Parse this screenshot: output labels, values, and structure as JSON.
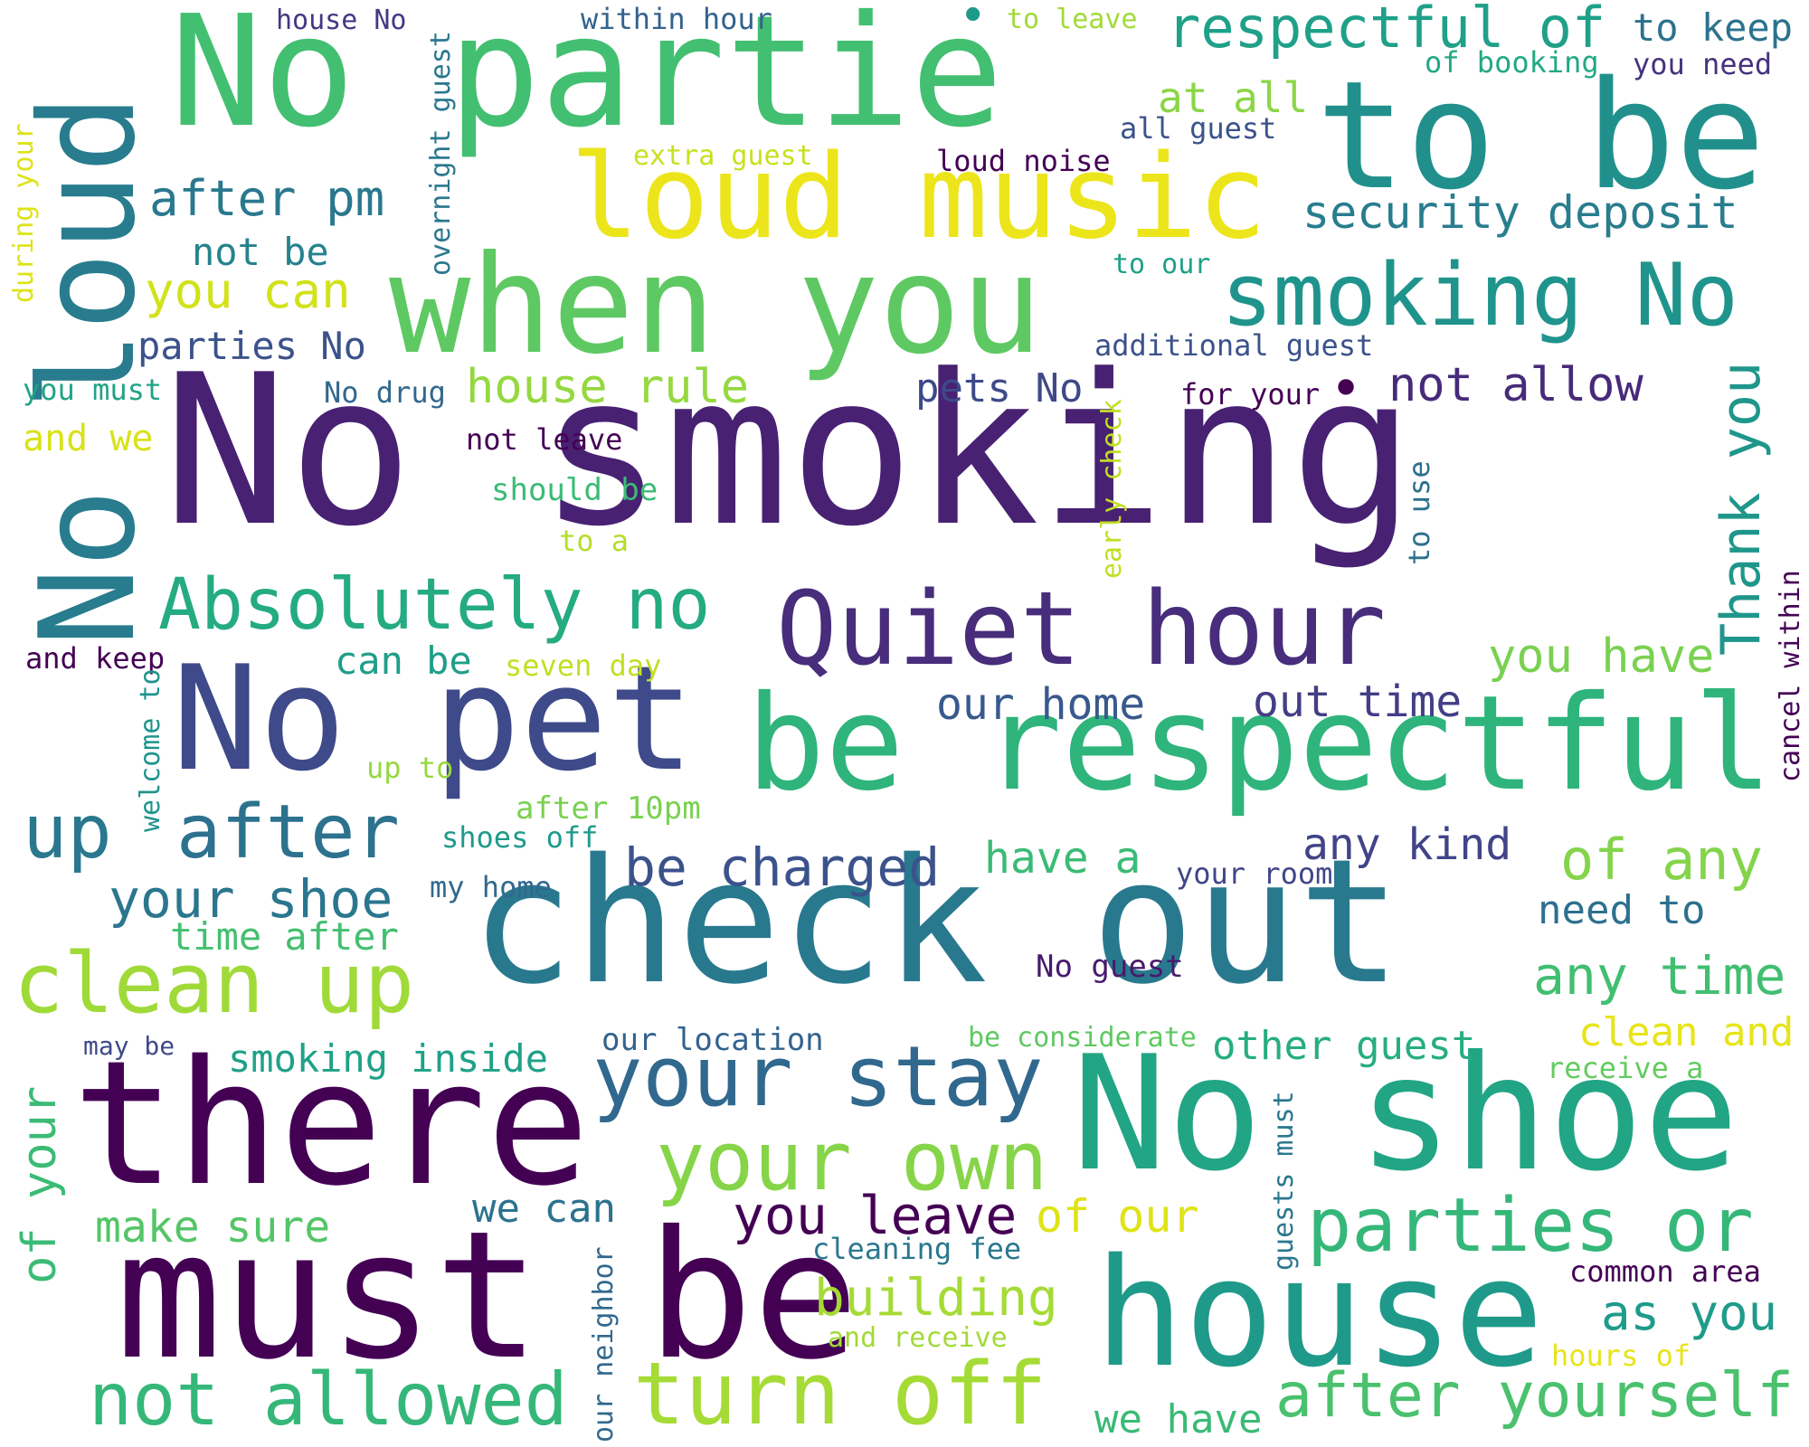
{
  "wordcloud": {
    "background": "#ffffff",
    "palette": "viridis",
    "words": [
      {
        "text": "No smoking",
        "color": "#482173"
      },
      {
        "text": "No partie",
        "color": "#43bf71"
      },
      {
        "text": "to be",
        "color": "#21908d"
      },
      {
        "text": "loud music",
        "color": "#ece51b"
      },
      {
        "text": "when you",
        "color": "#5ec962"
      },
      {
        "text": "check out",
        "color": "#29798e"
      },
      {
        "text": "No shoe",
        "color": "#21a585"
      },
      {
        "text": "there",
        "color": "#440154"
      },
      {
        "text": "must be",
        "color": "#440154"
      },
      {
        "text": "house",
        "color": "#1f9a8a"
      },
      {
        "text": "No pet",
        "color": "#3e4a89"
      },
      {
        "text": "be respectful",
        "color": "#2fb47c"
      },
      {
        "text": "Quiet hour",
        "color": "#472d7b"
      },
      {
        "text": "No loud",
        "color": "#287c8e"
      },
      {
        "text": "smoking No",
        "color": "#1f948c"
      },
      {
        "text": "Absolutely no",
        "color": "#25ab82"
      },
      {
        "text": "clean up",
        "color": "#a0da39"
      },
      {
        "text": "your stay",
        "color": "#31688e"
      },
      {
        "text": "your own",
        "color": "#86d549"
      },
      {
        "text": "turn off",
        "color": "#a5db36"
      },
      {
        "text": "not allowed",
        "color": "#35b779"
      },
      {
        "text": "parties or",
        "color": "#35b779"
      },
      {
        "text": "after yourself",
        "color": "#4ac16d"
      },
      {
        "text": "respectful of",
        "color": "#1fa088"
      },
      {
        "text": "after",
        "color": "#2c728e"
      },
      {
        "text": "up",
        "color": "#2a788e"
      },
      {
        "text": "security deposit",
        "color": "#287d8e"
      },
      {
        "text": "your shoe",
        "color": "#2a768e"
      },
      {
        "text": "be charged",
        "color": "#3b528b"
      },
      {
        "text": "you leave",
        "color": "#440154"
      },
      {
        "text": "of any",
        "color": "#84d44b"
      },
      {
        "text": "any time",
        "color": "#42be71"
      },
      {
        "text": "after pm",
        "color": "#2a788e"
      },
      {
        "text": "you can",
        "color": "#d2e21b"
      },
      {
        "text": "house rule",
        "color": "#95d840"
      },
      {
        "text": "Thank you",
        "color": "#1f968b"
      },
      {
        "text": "not allow",
        "color": "#472a7a"
      },
      {
        "text": "you have",
        "color": "#7ad151"
      },
      {
        "text": "our home",
        "color": "#38598c"
      },
      {
        "text": "out time",
        "color": "#433e85"
      },
      {
        "text": "any kind",
        "color": "#414487"
      },
      {
        "text": "have a",
        "color": "#3bbb75"
      },
      {
        "text": "make sure",
        "color": "#54c568"
      },
      {
        "text": "of your",
        "color": "#3bbb75"
      },
      {
        "text": "building",
        "color": "#a5db36"
      },
      {
        "text": "of our",
        "color": "#dfe318"
      },
      {
        "text": "as you",
        "color": "#1e9b8a"
      },
      {
        "text": "need to",
        "color": "#2d708e"
      },
      {
        "text": "clean and",
        "color": "#e7e419"
      },
      {
        "text": "other guest",
        "color": "#26ad81"
      },
      {
        "text": "we can",
        "color": "#2c728e"
      },
      {
        "text": "we have",
        "color": "#3aba76"
      },
      {
        "text": "smoking inside",
        "color": "#1fa187"
      },
      {
        "text": "parties No",
        "color": "#3b528b"
      },
      {
        "text": "pets No",
        "color": "#3e4989"
      },
      {
        "text": "not be",
        "color": "#26828e"
      },
      {
        "text": "can be",
        "color": "#1f9e89"
      },
      {
        "text": "time after",
        "color": "#44bf70"
      },
      {
        "text": "at all",
        "color": "#8bd646"
      },
      {
        "text": "and we",
        "color": "#d8e219"
      },
      {
        "text": "to keep",
        "color": "#2c728e"
      },
      {
        "text": "you must",
        "color": "#20a386"
      },
      {
        "text": "and keep",
        "color": "#440154"
      },
      {
        "text": "No drug",
        "color": "#31688e"
      },
      {
        "text": "not leave",
        "color": "#440154"
      },
      {
        "text": "should be",
        "color": "#3bbb75"
      },
      {
        "text": "to a",
        "color": "#b5de2b"
      },
      {
        "text": "seven day",
        "color": "#c2df23"
      },
      {
        "text": "up to",
        "color": "#95d840"
      },
      {
        "text": "after 10pm",
        "color": "#7ad151"
      },
      {
        "text": "shoes off",
        "color": "#1f9a8a"
      },
      {
        "text": "my home",
        "color": "#31688e"
      },
      {
        "text": "your room",
        "color": "#404688"
      },
      {
        "text": "No guest",
        "color": "#481a6c"
      },
      {
        "text": "our location",
        "color": "#33638d"
      },
      {
        "text": "be considerate",
        "color": "#5ec962"
      },
      {
        "text": "receive a",
        "color": "#63cb5f"
      },
      {
        "text": "cleaning fee",
        "color": "#2a788e"
      },
      {
        "text": "and receive",
        "color": "#a2da37"
      },
      {
        "text": "common area",
        "color": "#440154"
      },
      {
        "text": "hours of",
        "color": "#e7e419"
      },
      {
        "text": "may be",
        "color": "#3e4989"
      },
      {
        "text": "house No",
        "color": "#453882"
      },
      {
        "text": "within hour",
        "color": "#33638d"
      },
      {
        "text": "to leave",
        "color": "#a2da37"
      },
      {
        "text": "of booking",
        "color": "#22a884"
      },
      {
        "text": "you need",
        "color": "#46337e"
      },
      {
        "text": "all guest",
        "color": "#3b528b"
      },
      {
        "text": "extra guest",
        "color": "#c8e020"
      },
      {
        "text": "loud noise",
        "color": "#440154"
      },
      {
        "text": "to our",
        "color": "#1fa088"
      },
      {
        "text": "additional guest",
        "color": "#3b528b"
      },
      {
        "text": "for your",
        "color": "#440154"
      },
      {
        "text": "during your",
        "color": "#dde318"
      },
      {
        "text": "overnight guest",
        "color": "#2a788e"
      },
      {
        "text": "early check",
        "color": "#c2df23"
      },
      {
        "text": "to use",
        "color": "#2d708e"
      },
      {
        "text": "cancel within",
        "color": "#440154"
      },
      {
        "text": "welcome to",
        "color": "#1f948c"
      },
      {
        "text": "guests must",
        "color": "#2a788e"
      },
      {
        "text": "our neighbor",
        "color": "#31688e"
      }
    ]
  }
}
